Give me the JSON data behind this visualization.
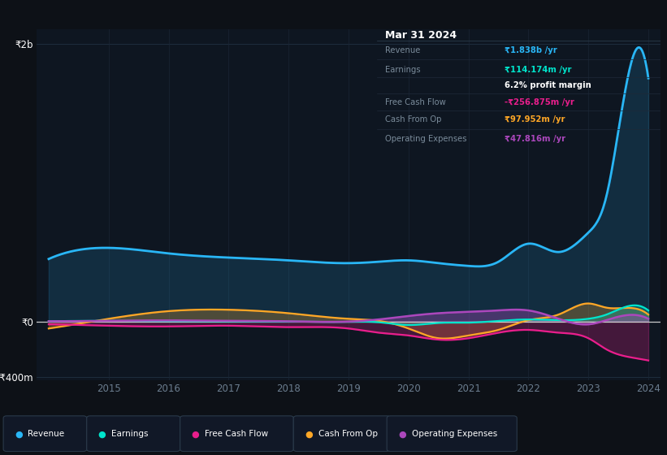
{
  "bg_color": "#0d1117",
  "plot_bg_color": "#0e1621",
  "years": [
    2014,
    2015,
    2016,
    2017,
    2018,
    2019,
    2019.5,
    2020,
    2020.5,
    2021,
    2021.5,
    2022,
    2022.5,
    2023,
    2023.3,
    2023.7,
    2024
  ],
  "revenue": [
    450,
    530,
    490,
    460,
    440,
    420,
    430,
    440,
    420,
    400,
    430,
    560,
    500,
    640,
    900,
    1838,
    1750
  ],
  "earnings": [
    2,
    5,
    3,
    2,
    0,
    -2,
    -5,
    -25,
    -10,
    -8,
    5,
    15,
    10,
    20,
    50,
    114,
    80
  ],
  "free_cash_flow": [
    -20,
    -30,
    -35,
    -30,
    -40,
    -50,
    -80,
    -100,
    -130,
    -120,
    -80,
    -60,
    -80,
    -120,
    -200,
    -257,
    -280
  ],
  "cash_from_op": [
    -50,
    20,
    75,
    85,
    60,
    20,
    5,
    -50,
    -120,
    -100,
    -60,
    10,
    50,
    130,
    100,
    98,
    50
  ],
  "operating_expenses": [
    2,
    5,
    8,
    5,
    2,
    0,
    15,
    40,
    60,
    70,
    80,
    80,
    20,
    -20,
    10,
    48,
    20
  ],
  "revenue_color": "#29b6f6",
  "earnings_color": "#00e5cc",
  "fcf_color": "#e91e8c",
  "cashop_color": "#ffa726",
  "opex_color": "#ab47bc",
  "grid_color": "#1e2a38",
  "zero_line_color": "#cccccc",
  "y2b_label": "₹2b",
  "y0_label": "₹0",
  "yneg400_label": "-₹400m",
  "tooltip_bg": "#111827",
  "info": {
    "date": "Mar 31 2024",
    "revenue": "₹1.838b",
    "earnings": "₹114.174m",
    "profit_margin": "6.2%",
    "fcf": "-₹256.875m",
    "cashop": "₹97.952m",
    "opex": "₹47.816m"
  }
}
